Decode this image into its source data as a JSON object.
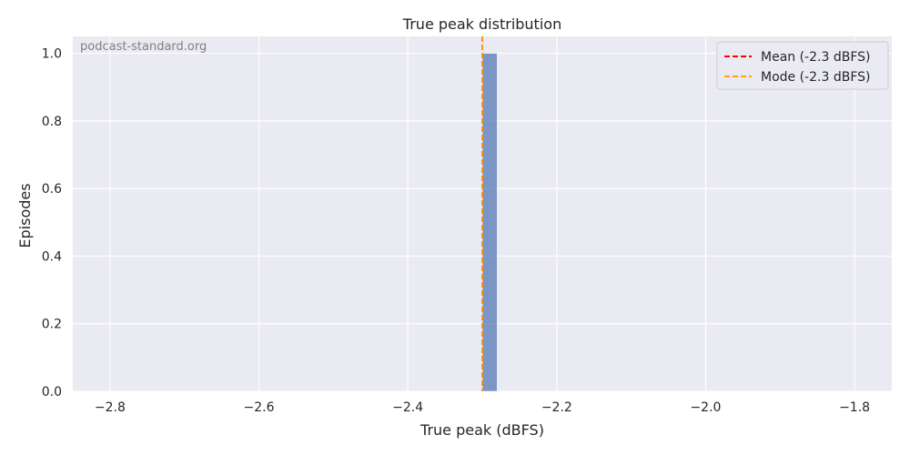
{
  "chart_data": {
    "type": "bar",
    "title": "True peak distribution",
    "xlabel": "True peak (dBFS)",
    "ylabel": "Episodes",
    "watermark": "podcast-standard.org",
    "xlim": [
      -2.85,
      -1.75
    ],
    "ylim": [
      0,
      1.05
    ],
    "xticks": [
      -2.8,
      -2.6,
      -2.4,
      -2.2,
      -2.0,
      -1.8
    ],
    "xtick_labels": [
      "−2.8",
      "−2.6",
      "−2.4",
      "−2.2",
      "−2.0",
      "−1.8"
    ],
    "yticks": [
      0.0,
      0.2,
      0.4,
      0.6,
      0.8,
      1.0
    ],
    "ytick_labels": [
      "0.0",
      "0.2",
      "0.4",
      "0.6",
      "0.8",
      "1.0"
    ],
    "bins": [
      {
        "x0": -2.3,
        "x1": -2.28,
        "count": 1
      }
    ],
    "reference_lines": [
      {
        "label": "Mean (-2.3 dBFS)",
        "x": -2.3,
        "color": "#ff0000"
      },
      {
        "label": "Mode (-2.3 dBFS)",
        "x": -2.3,
        "color": "#ffa500"
      }
    ],
    "bar_color": "#4c72b0",
    "background_color": "#eaeaf2",
    "grid": true,
    "legend_position": "top-right"
  }
}
